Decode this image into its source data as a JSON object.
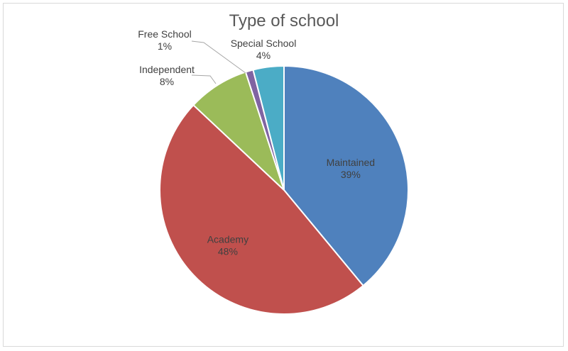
{
  "chart_data": {
    "type": "pie",
    "title": "Type of school",
    "slices": [
      {
        "label": "Maintained",
        "value": 39,
        "value_label": "39%",
        "color": "#4f81bd"
      },
      {
        "label": "Academy",
        "value": 48,
        "value_label": "48%",
        "color": "#c0504d"
      },
      {
        "label": "Independent",
        "value": 8,
        "value_label": "8%",
        "color": "#9bbb59"
      },
      {
        "label": "Free School",
        "value": 1,
        "value_label": "1%",
        "color": "#8064a2"
      },
      {
        "label": "Special School",
        "value": 4,
        "value_label": "4%",
        "color": "#4bacc6"
      }
    ]
  }
}
